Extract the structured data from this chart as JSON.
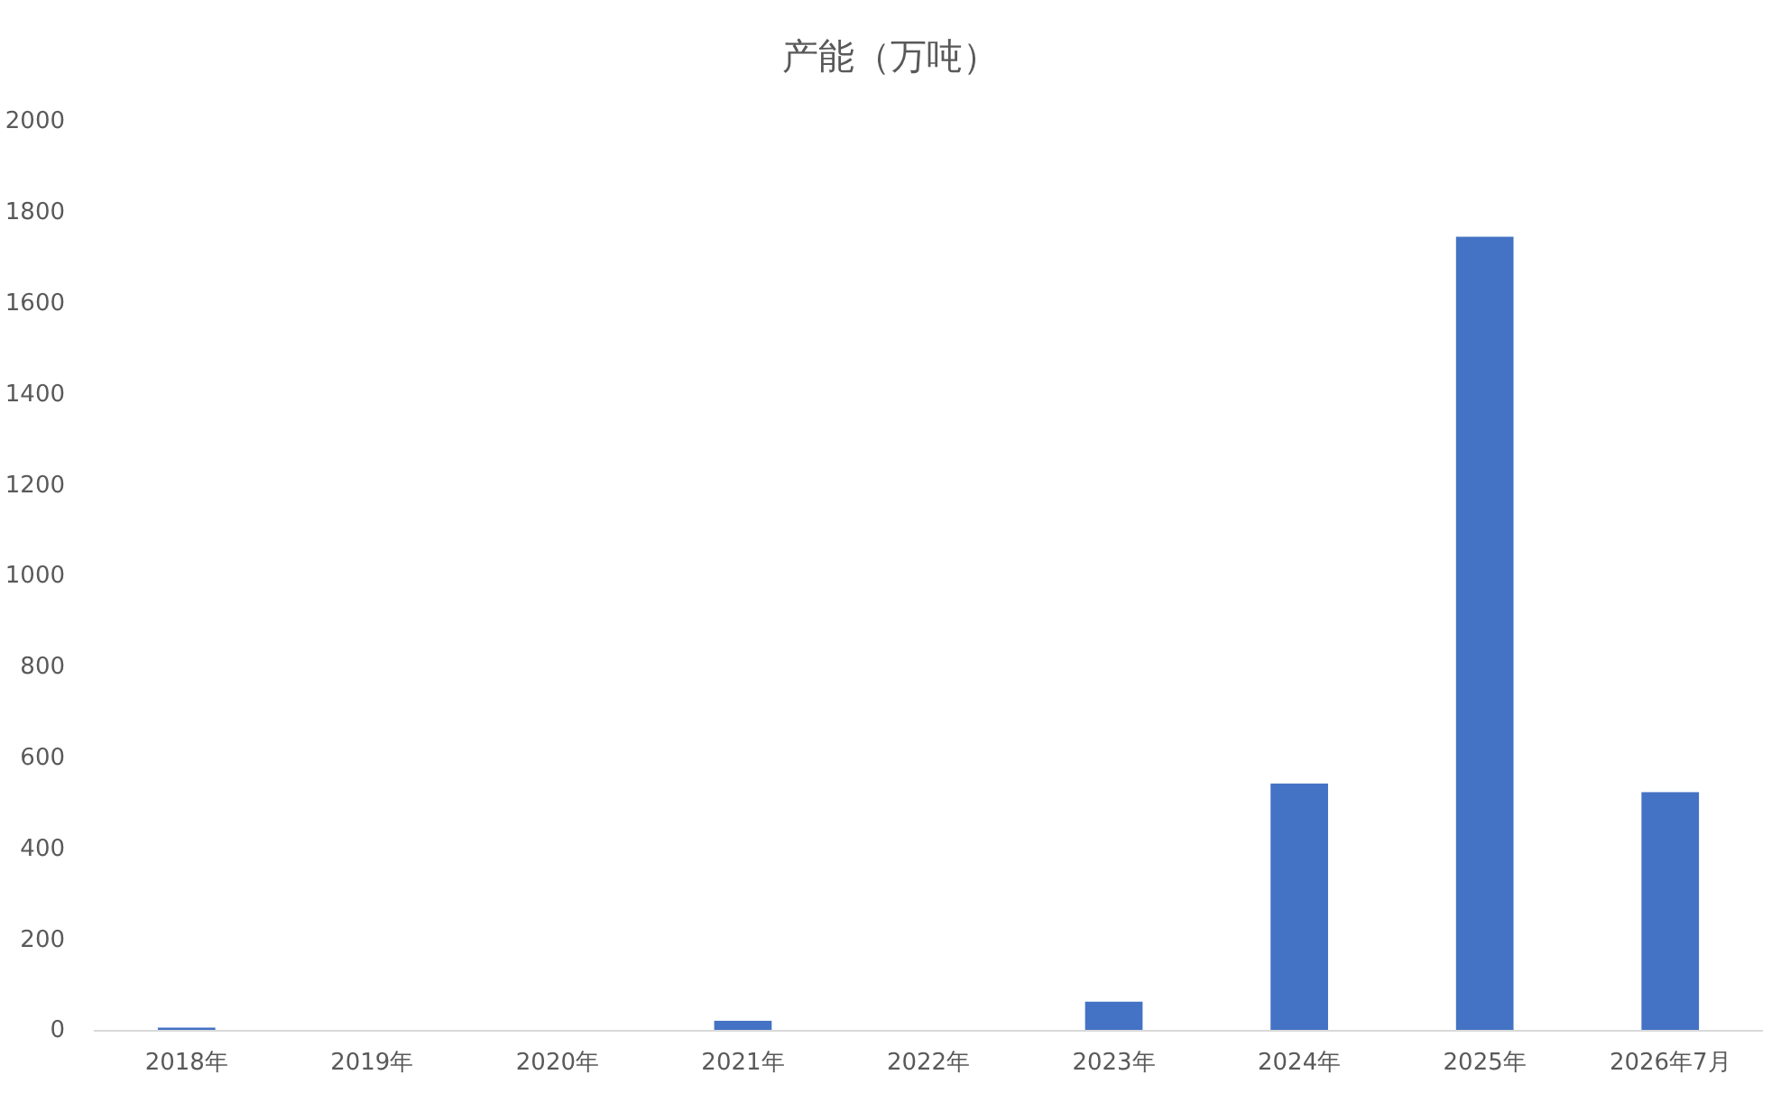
{
  "chart_data": {
    "type": "bar",
    "title": "产能（万吨）",
    "categories": [
      "2018年",
      "2019年",
      "2020年",
      "2021年",
      "2022年",
      "2023年",
      "2024年",
      "2025年",
      "2026年7月"
    ],
    "values": [
      5,
      0,
      0,
      20,
      0,
      62,
      542,
      1745,
      523
    ],
    "color": "#4472c4",
    "ylim": [
      0,
      2000
    ],
    "yticks": [
      0,
      200,
      400,
      600,
      800,
      1000,
      1200,
      1400,
      1600,
      1800,
      2000
    ],
    "grid": false,
    "legend": false
  }
}
